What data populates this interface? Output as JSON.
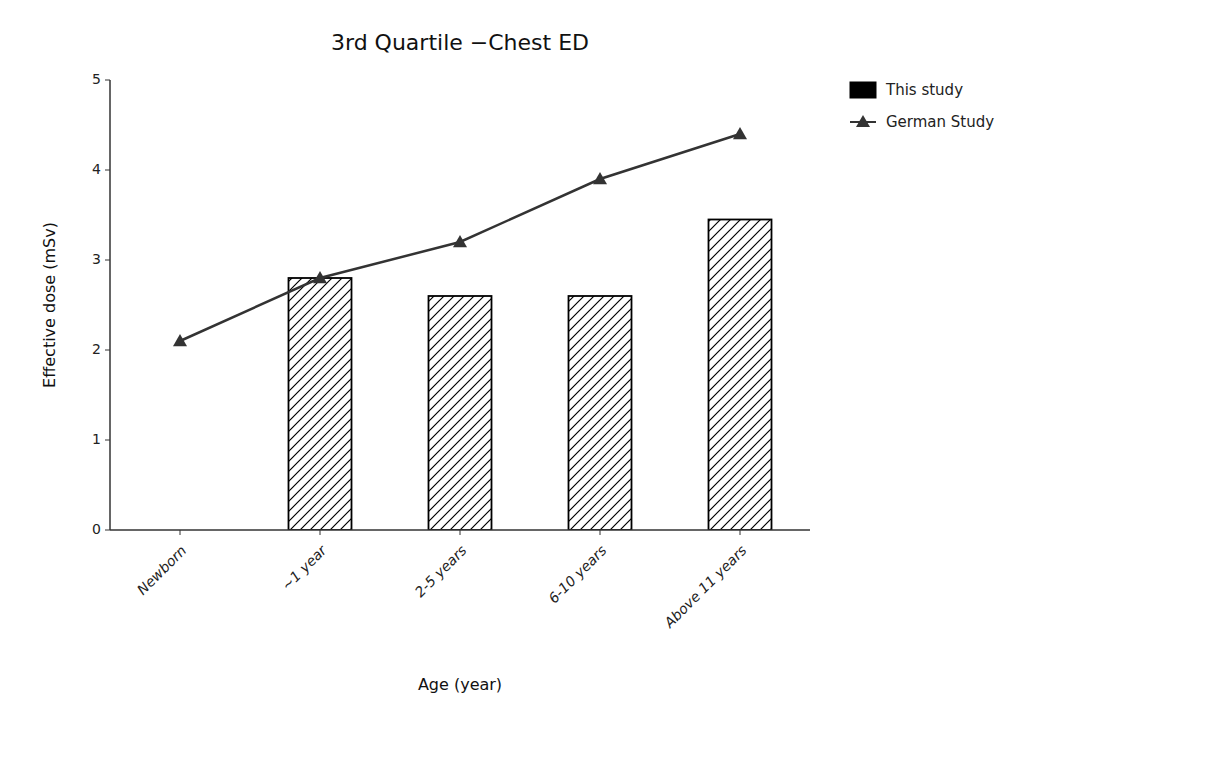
{
  "chart_data": {
    "type": "bar",
    "title": "3rd Quartile −Chest ED",
    "xlabel": "Age (year)",
    "ylabel": "Effective dose (mSv)",
    "categories": [
      "Newborn",
      "~1 year",
      "2-5 years",
      "6-10 years",
      "Above 11 years"
    ],
    "series": [
      {
        "name": "This study",
        "type": "bar",
        "color": "#000000",
        "values": [
          null,
          2.8,
          2.6,
          2.6,
          3.45
        ]
      },
      {
        "name": "German Study",
        "type": "line",
        "color": "#333333",
        "marker": "triangle",
        "values": [
          2.1,
          2.8,
          3.2,
          3.9,
          4.4
        ]
      }
    ],
    "ylim": [
      0,
      5
    ],
    "yticks": [
      0,
      1,
      2,
      3,
      4,
      5
    ],
    "grid": false,
    "legend": "right"
  }
}
